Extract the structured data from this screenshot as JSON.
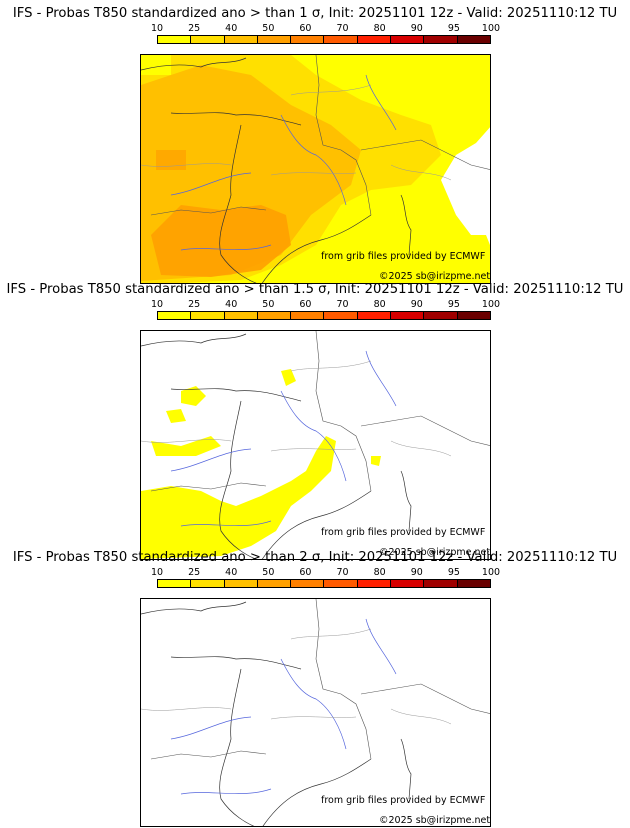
{
  "colorbar": {
    "labels": [
      "10",
      "25",
      "40",
      "50",
      "60",
      "70",
      "80",
      "90",
      "95",
      "100"
    ],
    "colors": [
      "#ffff00",
      "#ffe000",
      "#ffc000",
      "#ffa000",
      "#ff8000",
      "#ff5a00",
      "#ff2000",
      "#d80000",
      "#a00000",
      "#6a0000"
    ]
  },
  "panels": [
    {
      "title": "IFS - Probas T850  standardized ano > than 1 σ, Init: 20251101 12z - Valid: 20251110:12 TU",
      "source": "from grib files provided by ECMWF",
      "copyright": "©2025 sb@irizpme.net"
    },
    {
      "title": "IFS - Probas T850  standardized ano > than 1.5 σ, Init: 20251101 12z - Valid: 20251110:12 TU",
      "source": "from grib files provided by ECMWF",
      "copyright": "©2025 sb@irizpme.net"
    },
    {
      "title": "IFS - Probas T850  standardized ano > than 2 σ, Init: 20251101 12z - Valid: 20251110:12 TU",
      "source": "from grib files provided by ECMWF",
      "copyright": "©2025 sb@irizpme.net"
    }
  ]
}
